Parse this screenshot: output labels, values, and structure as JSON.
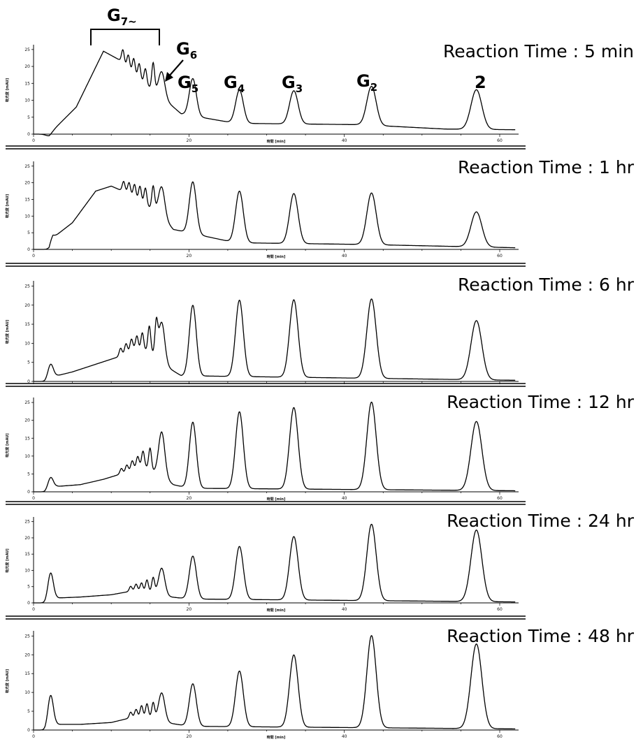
{
  "chart_data": [
    {
      "type": "line",
      "title": "Reaction Time : 5 min",
      "xlabel": "時間 [min]",
      "ylabel": "吸光度 [mAU]",
      "xlim": [
        0,
        62
      ],
      "ylim": [
        0,
        26
      ],
      "x_ticks": [
        "0",
        "20",
        "40",
        "60"
      ],
      "y_ticks": [
        "0",
        "5",
        "10",
        "15",
        "20",
        "25"
      ],
      "baseline": [
        [
          0,
          0
        ],
        [
          2,
          0
        ],
        [
          5.5,
          8
        ],
        [
          9,
          24.5
        ],
        [
          11,
          22
        ],
        [
          13.5,
          16.5
        ],
        [
          17,
          10
        ],
        [
          19,
          6
        ],
        [
          26,
          3.2
        ],
        [
          42,
          2.8
        ],
        [
          53,
          1.5
        ],
        [
          62,
          1.3
        ]
      ],
      "peaks": [
        [
          2,
          0.45,
          -0.5
        ],
        [
          16.5,
          0.4,
          7.5
        ],
        [
          20.5,
          0.45,
          11
        ],
        [
          26.5,
          0.5,
          9.8
        ],
        [
          33.5,
          0.55,
          9.8
        ],
        [
          43.5,
          0.6,
          11.5
        ],
        [
          57,
          0.7,
          11.7
        ]
      ],
      "oligo_peaks": [
        [
          11.5,
          4
        ],
        [
          12.2,
          4
        ],
        [
          12.9,
          4.5
        ],
        [
          13.6,
          4.5
        ],
        [
          14.4,
          4.5
        ],
        [
          15.4,
          8
        ]
      ],
      "peak_labels": [
        {
          "main": "G",
          "sub": "7~"
        },
        {
          "main": "G",
          "sub": "6"
        },
        {
          "main": "G",
          "sub": "5"
        },
        {
          "main": "G",
          "sub": "4"
        },
        {
          "main": "G",
          "sub": "3"
        },
        {
          "main": "G",
          "sub": "2"
        },
        {
          "main": "2",
          "sub": ""
        }
      ]
    },
    {
      "type": "line",
      "title": "Reaction Time : 1 hr",
      "xlabel": "時間 [min]",
      "ylabel": "吸光度 [mAU]",
      "xlim": [
        0,
        62
      ],
      "ylim": [
        0,
        26
      ],
      "x_ticks": [
        "0",
        "20",
        "40",
        "60"
      ],
      "y_ticks": [
        "0",
        "5",
        "10",
        "15",
        "20",
        "25"
      ],
      "baseline": [
        [
          0,
          0
        ],
        [
          2,
          0
        ],
        [
          2.5,
          3.5
        ],
        [
          5,
          8
        ],
        [
          8,
          17.5
        ],
        [
          10,
          19
        ],
        [
          12,
          17
        ],
        [
          14,
          14
        ],
        [
          16,
          11
        ],
        [
          18,
          6
        ],
        [
          26,
          2
        ],
        [
          42,
          1.5
        ],
        [
          62,
          0.5
        ]
      ],
      "peaks": [
        [
          2.3,
          0.3,
          1
        ],
        [
          16.5,
          0.4,
          9
        ],
        [
          20.5,
          0.45,
          15.5
        ],
        [
          26.5,
          0.5,
          15.5
        ],
        [
          33.5,
          0.55,
          15
        ],
        [
          43.5,
          0.6,
          15.5
        ],
        [
          57,
          0.7,
          10.5
        ]
      ],
      "oligo_peaks": [
        [
          11.6,
          3
        ],
        [
          12.3,
          3.5
        ],
        [
          13,
          4
        ],
        [
          13.7,
          4.5
        ],
        [
          14.4,
          5
        ],
        [
          15.4,
          7
        ]
      ]
    },
    {
      "type": "line",
      "title": "Reaction Time : 6 hr",
      "xlabel": "",
      "ylabel": "吸光度 [mAU]",
      "xlim": [
        0,
        62
      ],
      "ylim": [
        0,
        26
      ],
      "x_ticks": [],
      "y_ticks": [
        "0",
        "5",
        "10",
        "15",
        "20",
        "25"
      ],
      "baseline": [
        [
          0,
          0
        ],
        [
          1.5,
          0
        ],
        [
          2,
          0.5
        ],
        [
          3,
          1.5
        ],
        [
          5,
          2.5
        ],
        [
          8,
          4.5
        ],
        [
          11,
          6.5
        ],
        [
          13,
          8.5
        ],
        [
          15,
          8
        ],
        [
          17,
          4
        ],
        [
          19,
          1.5
        ],
        [
          62,
          0.3
        ]
      ],
      "peaks": [
        [
          2.2,
          0.35,
          3.8
        ],
        [
          16.5,
          0.4,
          10.5
        ],
        [
          20.5,
          0.45,
          18.5
        ],
        [
          26.5,
          0.5,
          20
        ],
        [
          33.5,
          0.55,
          20.3
        ],
        [
          43.5,
          0.6,
          20.8
        ],
        [
          57,
          0.7,
          15.5
        ]
      ],
      "oligo_peaks": [
        [
          11.2,
          2
        ],
        [
          11.9,
          2.5
        ],
        [
          12.6,
          3
        ],
        [
          13.3,
          3.5
        ],
        [
          14,
          4.5
        ],
        [
          14.9,
          6.5
        ],
        [
          15.8,
          8
        ]
      ]
    },
    {
      "type": "line",
      "title": "Reaction Time : 12 hr",
      "xlabel": "時間 [min]",
      "ylabel": "吸光度 [mAU]",
      "xlim": [
        0,
        62
      ],
      "ylim": [
        0,
        26
      ],
      "x_ticks": [
        "0",
        "20",
        "40",
        "60"
      ],
      "y_ticks": [
        "0",
        "5",
        "10",
        "15",
        "20",
        "25"
      ],
      "baseline": [
        [
          0,
          0
        ],
        [
          1.5,
          0
        ],
        [
          2,
          0.5
        ],
        [
          3,
          1.5
        ],
        [
          6,
          2
        ],
        [
          9,
          3.5
        ],
        [
          12,
          5.5
        ],
        [
          14,
          7.5
        ],
        [
          16,
          5
        ],
        [
          18,
          2
        ],
        [
          20,
          1
        ],
        [
          62,
          0.3
        ]
      ],
      "peaks": [
        [
          2.2,
          0.35,
          3.3
        ],
        [
          16.5,
          0.4,
          12.5
        ],
        [
          20.5,
          0.45,
          18.5
        ],
        [
          26.5,
          0.5,
          21.5
        ],
        [
          33.5,
          0.55,
          22.8
        ],
        [
          43.5,
          0.6,
          24.5
        ],
        [
          57,
          0.7,
          19.3
        ]
      ],
      "oligo_peaks": [
        [
          11.3,
          1.5
        ],
        [
          12,
          2
        ],
        [
          12.7,
          2.5
        ],
        [
          13.4,
          3
        ],
        [
          14.1,
          4
        ],
        [
          15,
          6
        ]
      ]
    },
    {
      "type": "line",
      "title": "Reaction Time : 24 hr",
      "xlabel": "時間 [min]",
      "ylabel": "吸光度 [mAU]",
      "xlim": [
        0,
        62
      ],
      "ylim": [
        0,
        26
      ],
      "x_ticks": [
        "0",
        "20",
        "40",
        "60"
      ],
      "y_ticks": [
        "0",
        "5",
        "10",
        "15",
        "20",
        "25"
      ],
      "baseline": [
        [
          0,
          0
        ],
        [
          1.5,
          0
        ],
        [
          2.5,
          1
        ],
        [
          3,
          1.5
        ],
        [
          6,
          1.8
        ],
        [
          10,
          2.5
        ],
        [
          13,
          3.8
        ],
        [
          15,
          3.5
        ],
        [
          17,
          2
        ],
        [
          20,
          1.2
        ],
        [
          62,
          0.3
        ]
      ],
      "peaks": [
        [
          2.2,
          0.35,
          8.5
        ],
        [
          16.5,
          0.4,
          8.3
        ],
        [
          20.5,
          0.45,
          13.2
        ],
        [
          26.5,
          0.5,
          16.3
        ],
        [
          33.5,
          0.55,
          19.5
        ],
        [
          43.5,
          0.6,
          23.5
        ],
        [
          57,
          0.7,
          22
        ]
      ],
      "oligo_peaks": [
        [
          12.5,
          1.5
        ],
        [
          13.2,
          2
        ],
        [
          13.9,
          2.5
        ],
        [
          14.6,
          3.5
        ],
        [
          15.4,
          4.5
        ]
      ]
    },
    {
      "type": "line",
      "title": "Reaction Time : 48 hr",
      "xlabel": "時間 [min]",
      "ylabel": "吸光度 [mAU]",
      "xlim": [
        0,
        62
      ],
      "ylim": [
        0,
        26
      ],
      "x_ticks": [
        "0",
        "20",
        "40",
        "60"
      ],
      "y_ticks": [
        "0",
        "5",
        "10",
        "15",
        "20",
        "25"
      ],
      "baseline": [
        [
          0,
          0
        ],
        [
          1.5,
          0
        ],
        [
          2.5,
          1
        ],
        [
          3,
          1.5
        ],
        [
          6,
          1.5
        ],
        [
          10,
          2
        ],
        [
          13,
          3.5
        ],
        [
          15,
          3.5
        ],
        [
          17,
          2
        ],
        [
          20,
          1
        ],
        [
          62,
          0.3
        ]
      ],
      "peaks": [
        [
          2.2,
          0.35,
          8.5
        ],
        [
          16.5,
          0.4,
          7.5
        ],
        [
          20.5,
          0.45,
          11.3
        ],
        [
          26.5,
          0.5,
          14.8
        ],
        [
          33.5,
          0.55,
          19.2
        ],
        [
          43.5,
          0.6,
          24.5
        ],
        [
          57,
          0.7,
          22.5
        ]
      ],
      "oligo_peaks": [
        [
          12.5,
          1.5
        ],
        [
          13.2,
          2
        ],
        [
          13.9,
          3
        ],
        [
          14.6,
          3.5
        ],
        [
          15.4,
          4
        ]
      ]
    }
  ]
}
